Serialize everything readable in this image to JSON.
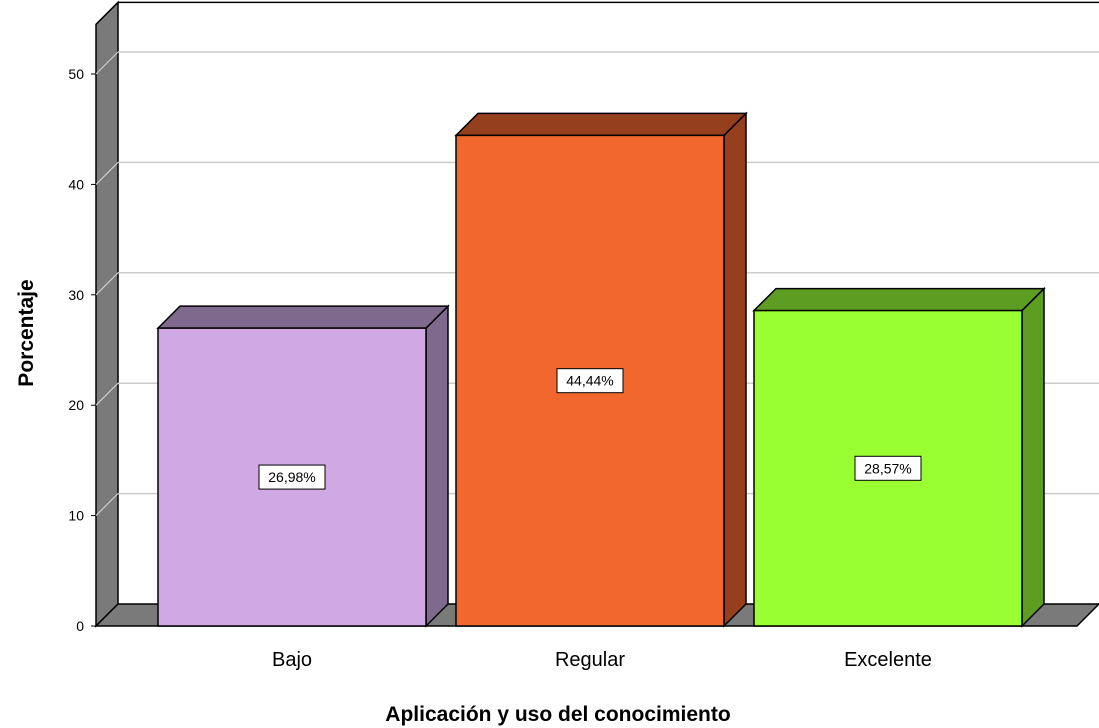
{
  "chart_data": {
    "type": "bar",
    "categories": [
      "Bajo",
      "Regular",
      "Excelente"
    ],
    "values": [
      26.98,
      44.44,
      28.57
    ],
    "data_labels": [
      "26,98%",
      "44,44%",
      "28,57%"
    ],
    "xlabel": "Aplicación y uso del conocimiento",
    "ylabel": "Porcentaje",
    "ylim": [
      0,
      50
    ],
    "yticks": [
      "0",
      "10",
      "20",
      "30",
      "40",
      "50"
    ],
    "grid": true,
    "style": "3d",
    "colors": [
      {
        "front": "#cfa8e4",
        "top": "#7f6a8e",
        "side": "#7f6a8e"
      },
      {
        "front": "#f2672d",
        "top": "#963f1c",
        "side": "#963f1c"
      },
      {
        "front": "#99ff33",
        "top": "#5d9e22",
        "side": "#5d9e22"
      }
    ],
    "wall_color": "#7a7a7a",
    "grid_color": "#cccccc"
  }
}
